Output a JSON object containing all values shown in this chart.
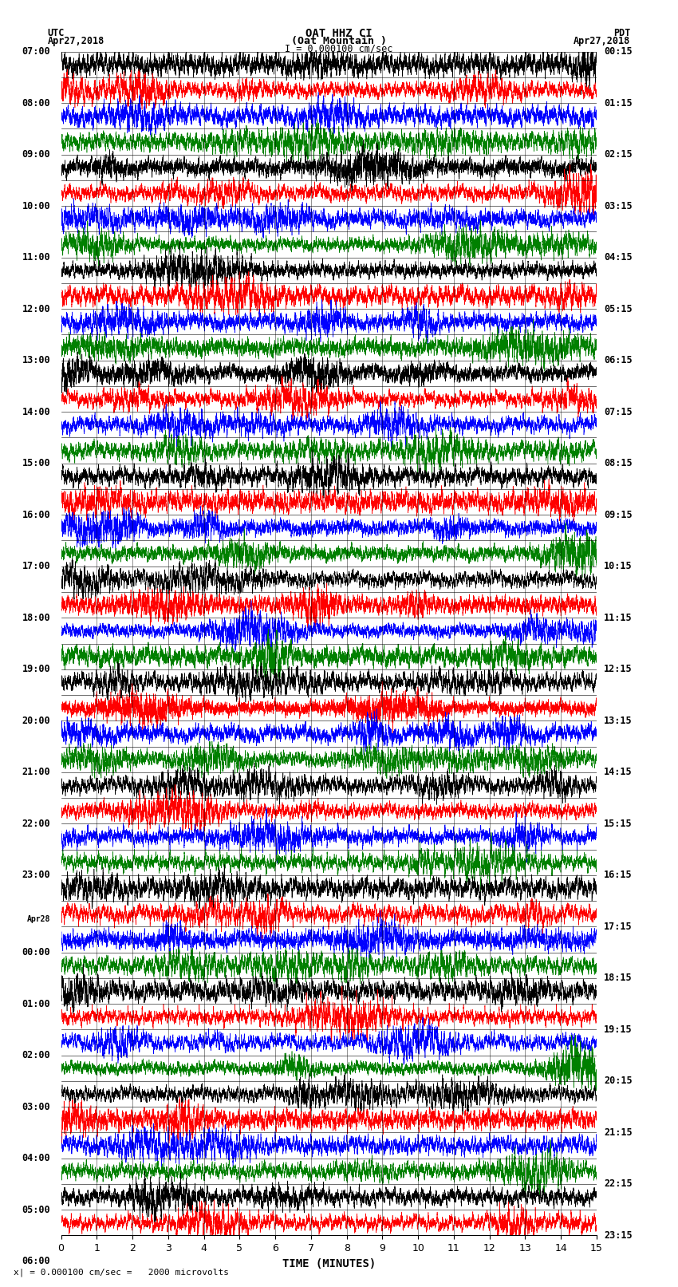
{
  "title_line1": "OAT HHZ CI",
  "title_line2": "(Oat Mountain )",
  "scale_label": "I = 0.000100 cm/sec",
  "left_header_line1": "UTC",
  "left_header_line2": "Apr27,2018",
  "right_header_line1": "PDT",
  "right_header_line2": "Apr27,2018",
  "bottom_label": "TIME (MINUTES)",
  "bottom_note": "x| = 0.000100 cm/sec =   2000 microvolts",
  "xlim": [
    0,
    15
  ],
  "xticks": [
    0,
    1,
    2,
    3,
    4,
    5,
    6,
    7,
    8,
    9,
    10,
    11,
    12,
    13,
    14,
    15
  ],
  "left_times": [
    "07:00",
    "",
    "08:00",
    "",
    "09:00",
    "",
    "10:00",
    "",
    "11:00",
    "",
    "12:00",
    "",
    "13:00",
    "",
    "14:00",
    "",
    "15:00",
    "",
    "16:00",
    "",
    "17:00",
    "",
    "18:00",
    "",
    "19:00",
    "",
    "20:00",
    "",
    "21:00",
    "",
    "22:00",
    "",
    "23:00",
    "",
    "Apr28",
    "00:00",
    "",
    "01:00",
    "",
    "02:00",
    "",
    "03:00",
    "",
    "04:00",
    "",
    "05:00",
    "",
    "06:00",
    ""
  ],
  "right_times": [
    "00:15",
    "",
    "01:15",
    "",
    "02:15",
    "",
    "03:15",
    "",
    "04:15",
    "",
    "05:15",
    "",
    "06:15",
    "",
    "07:15",
    "",
    "08:15",
    "",
    "09:15",
    "",
    "10:15",
    "",
    "11:15",
    "",
    "12:15",
    "",
    "13:15",
    "",
    "14:15",
    "",
    "15:15",
    "",
    "16:15",
    "",
    "17:15",
    "",
    "18:15",
    "",
    "19:15",
    "",
    "20:15",
    "",
    "21:15",
    "",
    "22:15",
    "",
    "23:15",
    ""
  ],
  "n_rows": 46,
  "colors": [
    "black",
    "red",
    "blue",
    "green"
  ],
  "bg_color": "white",
  "seed": 42,
  "fig_width": 8.5,
  "fig_height": 16.13,
  "dpi": 100
}
